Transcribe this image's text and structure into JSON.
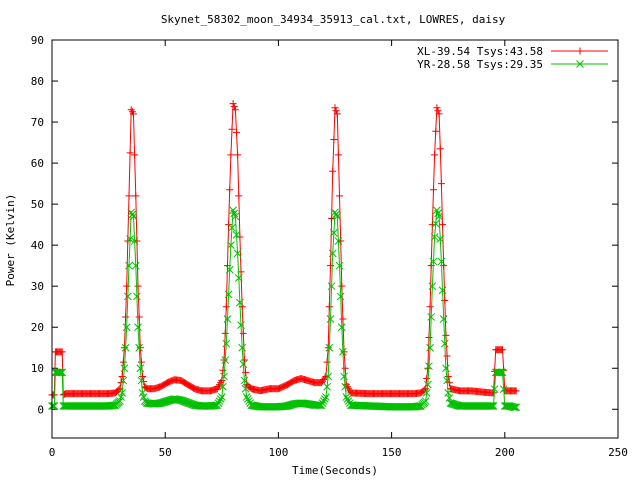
{
  "chart_data": {
    "type": "line",
    "title": "Skynet_58302_moon_34934_35913_cal.txt, LOWRES, daisy",
    "xlabel": "Time(Seconds)",
    "ylabel": "Power (Kelvin)",
    "xlim": [
      0,
      250
    ],
    "ylim": [
      -7,
      90
    ],
    "xticks": [
      0,
      50,
      100,
      150,
      200,
      250
    ],
    "yticks": [
      0,
      10,
      20,
      30,
      40,
      50,
      60,
      70,
      80,
      90
    ],
    "grid": false,
    "legend_position": "top-right",
    "series": [
      {
        "name": "XL-39.54 Tsys:43.58",
        "color": "#ff0000",
        "marker": "plus",
        "points": [
          [
            0,
            3.5
          ],
          [
            1,
            3.5
          ],
          [
            1.5,
            14
          ],
          [
            2,
            14
          ],
          [
            3,
            14
          ],
          [
            4,
            14
          ],
          [
            4.5,
            14
          ],
          [
            5,
            3.5
          ],
          [
            6,
            3.8
          ],
          [
            10,
            3.8
          ],
          [
            15,
            3.8
          ],
          [
            20,
            3.8
          ],
          [
            25,
            3.8
          ],
          [
            28,
            4
          ],
          [
            30,
            5
          ],
          [
            31,
            8
          ],
          [
            32,
            15
          ],
          [
            33,
            30
          ],
          [
            34,
            52
          ],
          [
            35,
            73
          ],
          [
            36,
            72
          ],
          [
            37,
            52
          ],
          [
            38,
            30
          ],
          [
            39,
            15
          ],
          [
            40,
            8
          ],
          [
            41,
            5.5
          ],
          [
            42,
            5
          ],
          [
            45,
            5
          ],
          [
            48,
            5.5
          ],
          [
            51,
            6.5
          ],
          [
            54,
            7.2
          ],
          [
            57,
            7
          ],
          [
            60,
            6
          ],
          [
            63,
            5
          ],
          [
            66,
            4.5
          ],
          [
            70,
            4.5
          ],
          [
            73,
            5
          ],
          [
            75,
            7
          ],
          [
            76,
            12
          ],
          [
            77,
            25
          ],
          [
            78,
            45
          ],
          [
            79,
            62
          ],
          [
            80,
            74.5
          ],
          [
            81,
            73
          ],
          [
            82,
            62
          ],
          [
            83,
            42
          ],
          [
            84,
            25
          ],
          [
            85,
            12
          ],
          [
            86,
            6
          ],
          [
            88,
            5
          ],
          [
            92,
            4.5
          ],
          [
            96,
            5
          ],
          [
            100,
            5
          ],
          [
            104,
            6
          ],
          [
            107,
            7
          ],
          [
            110,
            7.5
          ],
          [
            113,
            7
          ],
          [
            116,
            6.5
          ],
          [
            119,
            6.5
          ],
          [
            121,
            8
          ],
          [
            122,
            15
          ],
          [
            123,
            35
          ],
          [
            124,
            58
          ],
          [
            125,
            73.5
          ],
          [
            126,
            72
          ],
          [
            127,
            52
          ],
          [
            128,
            30
          ],
          [
            129,
            14
          ],
          [
            130,
            6
          ],
          [
            132,
            4
          ],
          [
            140,
            3.8
          ],
          [
            150,
            3.8
          ],
          [
            160,
            3.8
          ],
          [
            163,
            4
          ],
          [
            165,
            5
          ],
          [
            166,
            10
          ],
          [
            167,
            25
          ],
          [
            168,
            45
          ],
          [
            169,
            62
          ],
          [
            170,
            73.5
          ],
          [
            171,
            72
          ],
          [
            172,
            55
          ],
          [
            173,
            35
          ],
          [
            174,
            18
          ],
          [
            175,
            8
          ],
          [
            176,
            5
          ],
          [
            180,
            4.5
          ],
          [
            185,
            4.5
          ],
          [
            190,
            4.2
          ],
          [
            194,
            4
          ],
          [
            195,
            4
          ],
          [
            196,
            14.5
          ],
          [
            197,
            14.5
          ],
          [
            198,
            14.5
          ],
          [
            199,
            14.5
          ],
          [
            200,
            4.5
          ],
          [
            202,
            4.5
          ],
          [
            204,
            4.5
          ],
          [
            205,
            4.5
          ]
        ]
      },
      {
        "name": "YR-28.58 Tsys:29.35",
        "color": "#00c000",
        "marker": "cross",
        "points": [
          [
            0,
            0.8
          ],
          [
            1,
            0.8
          ],
          [
            1.5,
            9
          ],
          [
            2,
            9
          ],
          [
            3,
            9
          ],
          [
            4,
            9
          ],
          [
            4.5,
            9
          ],
          [
            5,
            0.8
          ],
          [
            6,
            0.8
          ],
          [
            10,
            0.8
          ],
          [
            15,
            0.8
          ],
          [
            20,
            0.8
          ],
          [
            25,
            0.8
          ],
          [
            28,
            1
          ],
          [
            30,
            2
          ],
          [
            31,
            4
          ],
          [
            32,
            10
          ],
          [
            33,
            20
          ],
          [
            34,
            35
          ],
          [
            35,
            48
          ],
          [
            36,
            47
          ],
          [
            37,
            35
          ],
          [
            38,
            20
          ],
          [
            39,
            10
          ],
          [
            40,
            4
          ],
          [
            41,
            2
          ],
          [
            42,
            1.5
          ],
          [
            45,
            1.3
          ],
          [
            48,
            1.5
          ],
          [
            51,
            2
          ],
          [
            54,
            2.5
          ],
          [
            57,
            2.2
          ],
          [
            60,
            1.6
          ],
          [
            63,
            1
          ],
          [
            66,
            0.8
          ],
          [
            70,
            0.8
          ],
          [
            73,
            1
          ],
          [
            75,
            3
          ],
          [
            76,
            8
          ],
          [
            77,
            16
          ],
          [
            78,
            28
          ],
          [
            79,
            40
          ],
          [
            80,
            48.5
          ],
          [
            81,
            47
          ],
          [
            82,
            38
          ],
          [
            83,
            26
          ],
          [
            84,
            15
          ],
          [
            85,
            7
          ],
          [
            86,
            3
          ],
          [
            88,
            1
          ],
          [
            92,
            0.6
          ],
          [
            96,
            0.6
          ],
          [
            100,
            0.6
          ],
          [
            104,
            0.8
          ],
          [
            107,
            1.3
          ],
          [
            110,
            1.5
          ],
          [
            113,
            1.3
          ],
          [
            116,
            1
          ],
          [
            119,
            1
          ],
          [
            121,
            3
          ],
          [
            122,
            8
          ],
          [
            123,
            22
          ],
          [
            124,
            38
          ],
          [
            125,
            48
          ],
          [
            126,
            47
          ],
          [
            127,
            35
          ],
          [
            128,
            20
          ],
          [
            129,
            8
          ],
          [
            130,
            3
          ],
          [
            132,
            1
          ],
          [
            140,
            0.8
          ],
          [
            150,
            0.6
          ],
          [
            160,
            0.6
          ],
          [
            163,
            0.8
          ],
          [
            165,
            2
          ],
          [
            166,
            6
          ],
          [
            167,
            15
          ],
          [
            168,
            30
          ],
          [
            169,
            42
          ],
          [
            170,
            48.5
          ],
          [
            171,
            47
          ],
          [
            172,
            36
          ],
          [
            173,
            22
          ],
          [
            174,
            10
          ],
          [
            175,
            4
          ],
          [
            176,
            1.5
          ],
          [
            180,
            0.8
          ],
          [
            185,
            0.8
          ],
          [
            190,
            0.8
          ],
          [
            194,
            0.8
          ],
          [
            195,
            0.8
          ],
          [
            196,
            9
          ],
          [
            197,
            9
          ],
          [
            198,
            9
          ],
          [
            199,
            9
          ],
          [
            200,
            0.8
          ],
          [
            202,
            0.8
          ],
          [
            204,
            0.5
          ],
          [
            205,
            0.5
          ]
        ]
      }
    ]
  }
}
